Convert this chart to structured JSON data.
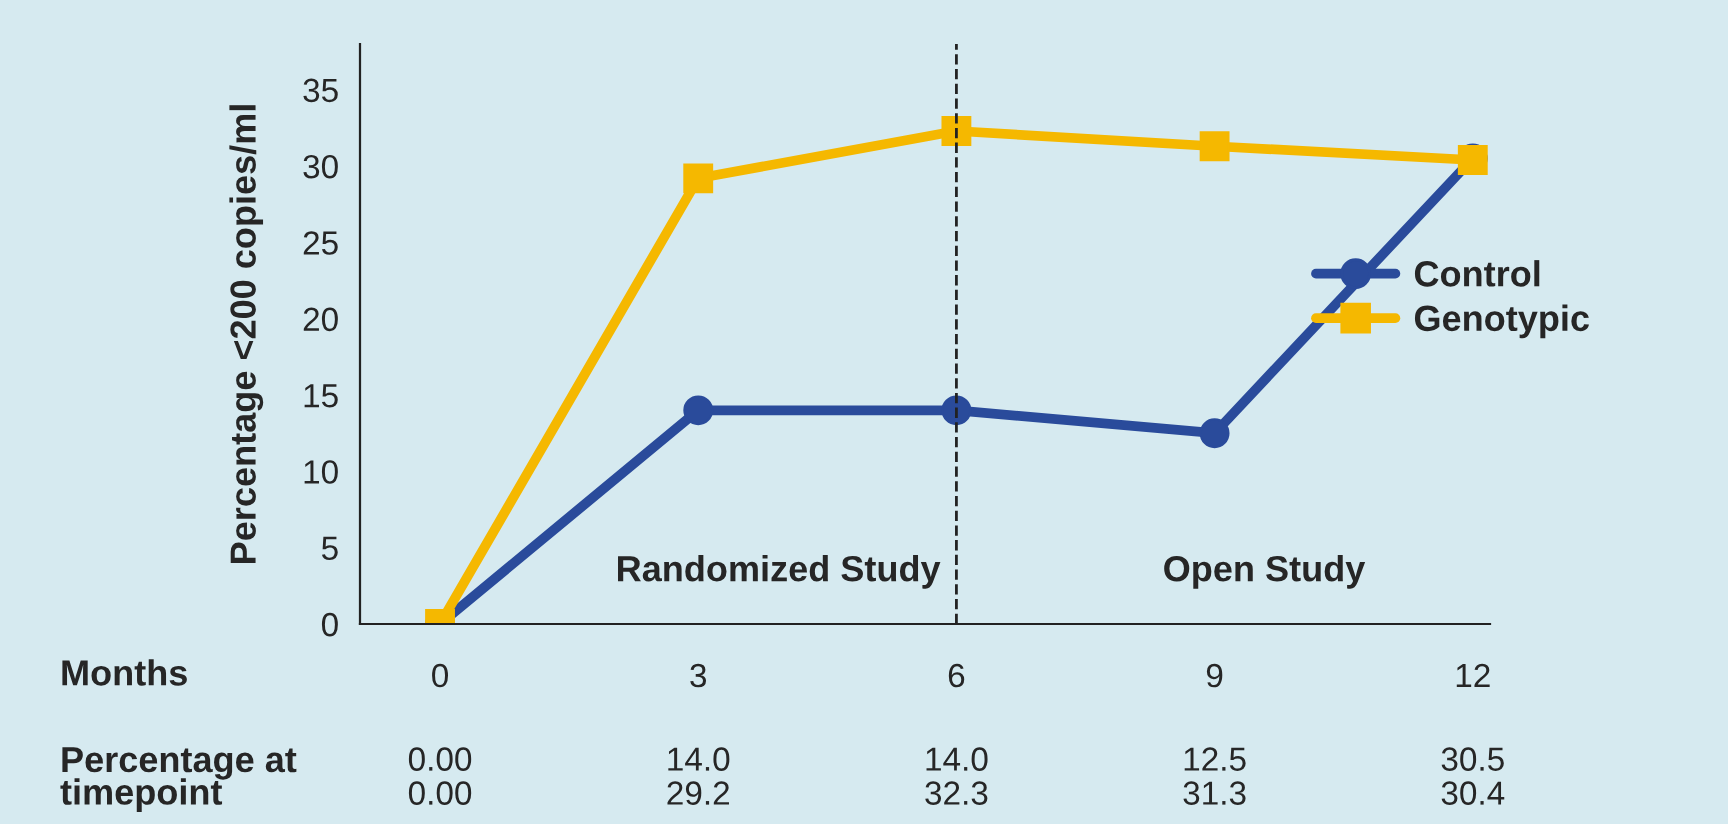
{
  "chart_data": {
    "type": "line",
    "x": [
      0,
      3,
      6,
      9,
      12
    ],
    "series": [
      {
        "name": "Control",
        "color": "#2a4b9b",
        "values": [
          0.0,
          14.0,
          14.0,
          12.5,
          30.5
        ],
        "marker": "circle"
      },
      {
        "name": "Genotypic",
        "color": "#f5b800",
        "values": [
          0.0,
          29.2,
          32.3,
          31.3,
          30.4
        ],
        "marker": "square"
      }
    ],
    "value_labels": [
      [
        "0.00",
        "14.0",
        "14.0",
        "12.5",
        "30.5"
      ],
      [
        "0.00",
        "29.2",
        "32.3",
        "31.3",
        "30.4"
      ]
    ],
    "xlabel": "Months",
    "ylabel": "Percentage <200 copies/ml",
    "xlim": [
      -0.93,
      12.2
    ],
    "xticks": [
      0,
      3,
      6,
      9,
      12
    ],
    "ylim": [
      0,
      38
    ],
    "yticks": [
      0,
      5,
      10,
      15,
      20,
      25,
      30,
      35
    ],
    "ref_lines": [
      {
        "axis": "x",
        "value": 6,
        "line_style": "dashed",
        "color": "#222222"
      }
    ],
    "annotations": [
      "Randomized Study",
      "Open Study",
      "Percentage at\ntimepoint"
    ],
    "legend": "right",
    "grid": false,
    "line_style": "solid"
  }
}
